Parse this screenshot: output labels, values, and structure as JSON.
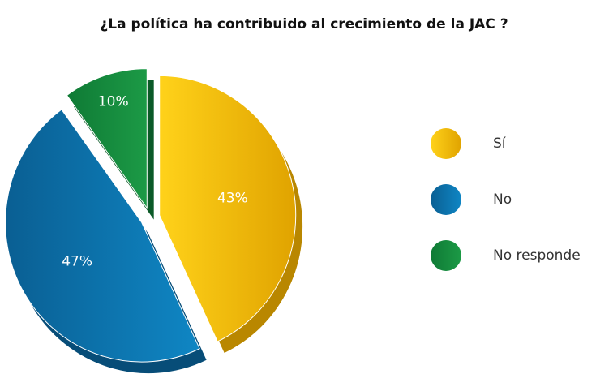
{
  "chart_data": {
    "type": "pie",
    "title": "¿La política ha contribuido al crecimiento de la JAC ?",
    "categories": [
      "Sí",
      "No",
      "No responde"
    ],
    "values": [
      43,
      47,
      10
    ],
    "value_labels": [
      "43%",
      "47%",
      "10%"
    ],
    "colors": [
      "#f2b600",
      "#0b6fa8",
      "#168a3c"
    ],
    "legend": "right"
  }
}
